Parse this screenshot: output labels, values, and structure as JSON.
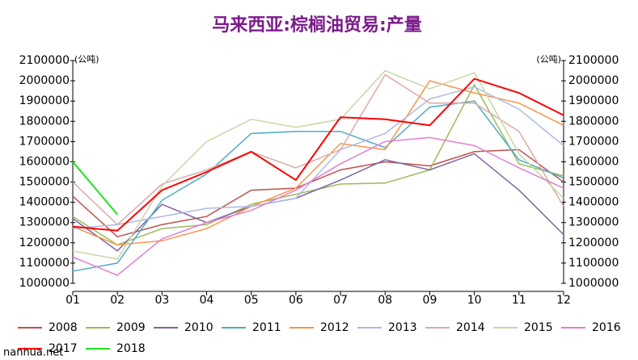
{
  "chart_data": {
    "type": "line",
    "title": "马来西亚:棕榈油贸易:产量",
    "unit_left": "(公吨)",
    "unit_right": "(公吨)",
    "source": "nanhua.net",
    "categories": [
      "01",
      "02",
      "03",
      "04",
      "05",
      "06",
      "07",
      "08",
      "09",
      "10",
      "11",
      "12"
    ],
    "ylim": [
      1000000,
      2100000
    ],
    "yticks": [
      1000000,
      1100000,
      1200000,
      1300000,
      1400000,
      1500000,
      1600000,
      1700000,
      1800000,
      1900000,
      2000000,
      2100000
    ],
    "y2lim": [
      1000000,
      2100000
    ],
    "y2ticks": [
      1000000,
      1100000,
      1200000,
      1300000,
      1400000,
      1500000,
      1600000,
      1700000,
      1800000,
      1900000,
      2000000,
      2100000
    ],
    "grid": false,
    "series": [
      {
        "name": "2008",
        "color": "#c0504d",
        "values": [
          1430000,
          1230000,
          1290000,
          1330000,
          1460000,
          1470000,
          1560000,
          1600000,
          1580000,
          1650000,
          1660000,
          1500000
        ]
      },
      {
        "name": "2009",
        "color": "#9bbb59",
        "values": [
          1330000,
          1190000,
          1270000,
          1290000,
          1390000,
          1440000,
          1490000,
          1495000,
          1560000,
          1980000,
          1590000,
          1530000
        ]
      },
      {
        "name": "2010",
        "color": "#8064a2",
        "values": [
          1320000,
          1160000,
          1390000,
          1300000,
          1380000,
          1420000,
          1510000,
          1610000,
          1560000,
          1640000,
          1460000,
          1240000
        ]
      },
      {
        "name": "2011",
        "color": "#4bacc6",
        "values": [
          1060000,
          1100000,
          1410000,
          1540000,
          1740000,
          1750000,
          1750000,
          1670000,
          1870000,
          1900000,
          1610000,
          1520000
        ]
      },
      {
        "name": "2012",
        "color": "#f79646",
        "values": [
          1280000,
          1190000,
          1210000,
          1270000,
          1380000,
          1470000,
          1690000,
          1660000,
          2000000,
          1940000,
          1890000,
          1780000
        ]
      },
      {
        "name": "2013",
        "color": "#adb9e3",
        "values": [
          1270000,
          1290000,
          1330000,
          1370000,
          1380000,
          1420000,
          1660000,
          1740000,
          1910000,
          1970000,
          1860000,
          1680000
        ]
      },
      {
        "name": "2014",
        "color": "#dbaaaa",
        "values": [
          1500000,
          1290000,
          1490000,
          1560000,
          1650000,
          1570000,
          1660000,
          2030000,
          1890000,
          1890000,
          1750000,
          1380000
        ]
      },
      {
        "name": "2015",
        "color": "#c9d6a6",
        "values": [
          1160000,
          1120000,
          1480000,
          1700000,
          1810000,
          1770000,
          1810000,
          2050000,
          1960000,
          2040000,
          1640000,
          1420000
        ]
      },
      {
        "name": "2016",
        "color": "#e37fd3",
        "values": [
          1130000,
          1040000,
          1220000,
          1300000,
          1360000,
          1460000,
          1590000,
          1700000,
          1720000,
          1680000,
          1570000,
          1470000
        ]
      },
      {
        "name": "2017",
        "color": "#ff0000",
        "values": [
          1280000,
          1260000,
          1460000,
          1550000,
          1650000,
          1510000,
          1820000,
          1810000,
          1780000,
          2010000,
          1940000,
          1830000
        ]
      },
      {
        "name": "2018",
        "color": "#22e022",
        "values": [
          1600000,
          1340000,
          null,
          null,
          null,
          null,
          null,
          null,
          null,
          null,
          null,
          null
        ]
      }
    ]
  }
}
